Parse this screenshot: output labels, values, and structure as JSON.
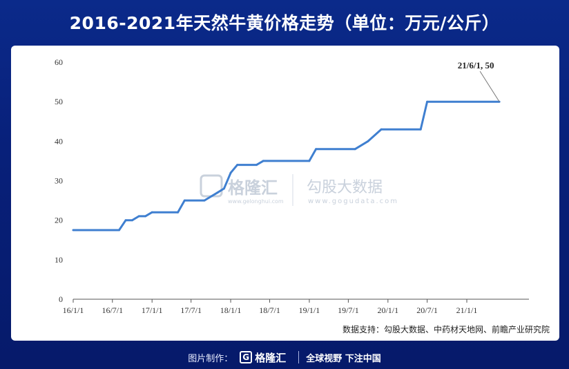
{
  "title": "2016-2021年天然牛黄价格走势（单位：万元/公斤）",
  "source": "数据支持：勾股大数据、中药材天地网、前瞻产业研究院",
  "watermark": {
    "brand1": "格隆汇",
    "brand1_url": "www.gelonghui.com",
    "brand2": "勾股大数据",
    "brand2_url": "www.gogudata.com"
  },
  "footer": {
    "label": "图片制作：",
    "brand": "格隆汇",
    "slogan": "全球视野 下注中国"
  },
  "chart_data": {
    "type": "line",
    "title": "2016-2021年天然牛黄价格走势（单位：万元/公斤）",
    "xlabel": "",
    "ylabel": "",
    "ylim": [
      0,
      60
    ],
    "yticks": [
      0,
      10,
      20,
      30,
      40,
      50,
      60
    ],
    "grid": false,
    "xticks": [
      "16/1/1",
      "16/7/1",
      "17/1/1",
      "17/7/1",
      "18/1/1",
      "18/7/1",
      "19/1/1",
      "19/7/1",
      "20/1/1",
      "20/7/1",
      "21/1/1"
    ],
    "annotation": "21/6/1, 50",
    "series": [
      {
        "color": "#3f7fd0",
        "points": [
          [
            "2016-01-01",
            17.5
          ],
          [
            "2016-08-01",
            17.5
          ],
          [
            "2016-09-01",
            20
          ],
          [
            "2016-10-01",
            20
          ],
          [
            "2016-11-01",
            21
          ],
          [
            "2016-12-01",
            21
          ],
          [
            "2017-01-01",
            22
          ],
          [
            "2017-05-01",
            22
          ],
          [
            "2017-06-01",
            25
          ],
          [
            "2017-09-01",
            25
          ],
          [
            "2017-11-01",
            27
          ],
          [
            "2017-12-01",
            28
          ],
          [
            "2018-01-01",
            32
          ],
          [
            "2018-02-01",
            34
          ],
          [
            "2018-05-01",
            34
          ],
          [
            "2018-06-01",
            35
          ],
          [
            "2019-01-01",
            35
          ],
          [
            "2019-02-01",
            38
          ],
          [
            "2019-08-01",
            38
          ],
          [
            "2019-10-01",
            40
          ],
          [
            "2019-12-01",
            43
          ],
          [
            "2020-06-01",
            43
          ],
          [
            "2020-07-01",
            50
          ],
          [
            "2021-06-01",
            50
          ]
        ]
      }
    ]
  }
}
